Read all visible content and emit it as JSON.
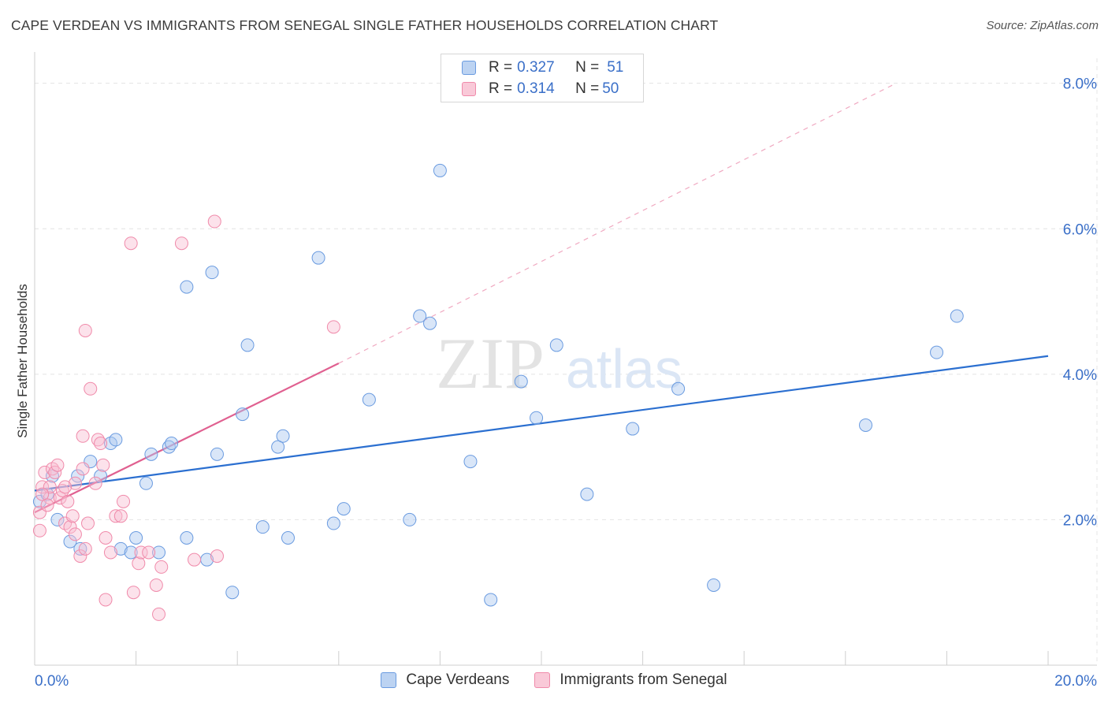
{
  "title": "CAPE VERDEAN VS IMMIGRANTS FROM SENEGAL SINGLE FATHER HOUSEHOLDS CORRELATION CHART",
  "source": "Source: ZipAtlas.com",
  "watermark": {
    "zip": "ZIP",
    "atlas": "atlas"
  },
  "legend": {
    "rows": [
      {
        "r_label": "R = ",
        "r_value": "0.327",
        "n_label": "N = ",
        "n_value": "51"
      },
      {
        "r_label": "R = ",
        "r_value": "0.314",
        "n_label": "N = ",
        "n_value": "50"
      }
    ]
  },
  "chart_data": {
    "type": "scatter",
    "title": "CAPE VERDEAN VS IMMIGRANTS FROM SENEGAL SINGLE FATHER HOUSEHOLDS CORRELATION CHART",
    "xlabel": "",
    "ylabel": "Single Father Households",
    "xlim": [
      0,
      20
    ],
    "ylim": [
      0,
      8.3
    ],
    "x_tick_labels": [
      "0.0%",
      "20.0%"
    ],
    "y_ticks": [
      2,
      4,
      6,
      8
    ],
    "y_tick_labels": [
      "2.0%",
      "4.0%",
      "6.0%",
      "8.0%"
    ],
    "grid": true,
    "legend_position": "top-center",
    "colors": {
      "cape": "#6a9be0",
      "senegal": "#f08aaa",
      "cape_line": "#2b6fd0",
      "senegal_line": "#e06090"
    },
    "series": [
      {
        "name": "Cape Verdeans",
        "r": 0.327,
        "n": 51,
        "trend": {
          "x": [
            0,
            20
          ],
          "y": [
            2.4,
            4.25
          ]
        },
        "points": [
          [
            0.1,
            2.25
          ],
          [
            0.25,
            2.35
          ],
          [
            0.35,
            2.6
          ],
          [
            0.45,
            2.0
          ],
          [
            0.7,
            1.7
          ],
          [
            0.85,
            2.6
          ],
          [
            0.9,
            1.6
          ],
          [
            1.1,
            2.8
          ],
          [
            1.3,
            2.6
          ],
          [
            1.5,
            3.05
          ],
          [
            1.6,
            3.1
          ],
          [
            1.7,
            1.6
          ],
          [
            1.9,
            1.55
          ],
          [
            2.0,
            1.75
          ],
          [
            2.2,
            2.5
          ],
          [
            2.3,
            2.9
          ],
          [
            2.45,
            1.55
          ],
          [
            2.65,
            3.0
          ],
          [
            2.7,
            3.05
          ],
          [
            3.0,
            5.2
          ],
          [
            3.0,
            1.75
          ],
          [
            3.4,
            1.45
          ],
          [
            3.5,
            5.4
          ],
          [
            3.6,
            2.9
          ],
          [
            3.9,
            1.0
          ],
          [
            4.1,
            3.45
          ],
          [
            4.2,
            4.4
          ],
          [
            4.5,
            1.9
          ],
          [
            4.8,
            3.0
          ],
          [
            4.9,
            3.15
          ],
          [
            5.0,
            1.75
          ],
          [
            5.6,
            5.6
          ],
          [
            5.9,
            1.95
          ],
          [
            6.1,
            2.15
          ],
          [
            6.6,
            3.65
          ],
          [
            7.4,
            2.0
          ],
          [
            7.6,
            4.8
          ],
          [
            7.8,
            4.7
          ],
          [
            8.0,
            6.8
          ],
          [
            8.6,
            2.8
          ],
          [
            9.0,
            0.9
          ],
          [
            9.6,
            3.9
          ],
          [
            9.9,
            3.4
          ],
          [
            10.3,
            4.4
          ],
          [
            10.9,
            2.35
          ],
          [
            11.8,
            3.25
          ],
          [
            12.7,
            3.8
          ],
          [
            13.4,
            1.1
          ],
          [
            16.4,
            3.3
          ],
          [
            17.8,
            4.3
          ],
          [
            18.2,
            4.8
          ]
        ]
      },
      {
        "name": "Immigrants from Senegal",
        "r": 0.314,
        "n": 50,
        "trend": {
          "x": [
            0,
            6
          ],
          "y": [
            2.1,
            4.15
          ]
        },
        "trend_dashed": {
          "x": [
            6,
            17
          ],
          "y": [
            4.15,
            8.0
          ]
        },
        "points": [
          [
            0.1,
            1.85
          ],
          [
            0.1,
            2.1
          ],
          [
            0.15,
            2.45
          ],
          [
            0.2,
            2.65
          ],
          [
            0.3,
            2.3
          ],
          [
            0.3,
            2.45
          ],
          [
            0.35,
            2.7
          ],
          [
            0.4,
            2.65
          ],
          [
            0.5,
            2.3
          ],
          [
            0.55,
            2.4
          ],
          [
            0.6,
            1.95
          ],
          [
            0.65,
            2.25
          ],
          [
            0.7,
            1.9
          ],
          [
            0.75,
            2.05
          ],
          [
            0.8,
            1.8
          ],
          [
            0.8,
            2.5
          ],
          [
            0.9,
            1.5
          ],
          [
            0.95,
            2.7
          ],
          [
            1.0,
            4.6
          ],
          [
            1.0,
            1.6
          ],
          [
            1.05,
            1.95
          ],
          [
            1.1,
            3.8
          ],
          [
            1.2,
            2.5
          ],
          [
            1.25,
            3.1
          ],
          [
            1.3,
            3.05
          ],
          [
            1.35,
            2.75
          ],
          [
            1.4,
            1.75
          ],
          [
            1.4,
            0.9
          ],
          [
            1.5,
            1.55
          ],
          [
            1.6,
            2.05
          ],
          [
            1.7,
            2.05
          ],
          [
            1.75,
            2.25
          ],
          [
            1.9,
            5.8
          ],
          [
            1.95,
            1.0
          ],
          [
            2.05,
            1.4
          ],
          [
            2.1,
            1.55
          ],
          [
            2.25,
            1.55
          ],
          [
            2.4,
            1.1
          ],
          [
            2.45,
            0.7
          ],
          [
            2.5,
            1.35
          ],
          [
            2.9,
            5.8
          ],
          [
            3.15,
            1.45
          ],
          [
            3.55,
            6.1
          ],
          [
            3.6,
            1.5
          ],
          [
            5.9,
            4.65
          ],
          [
            0.15,
            2.35
          ],
          [
            0.25,
            2.2
          ],
          [
            0.45,
            2.75
          ],
          [
            0.6,
            2.45
          ],
          [
            0.95,
            3.15
          ]
        ]
      }
    ]
  },
  "bottom_legend": [
    "Cape Verdeans",
    "Immigrants from Senegal"
  ]
}
